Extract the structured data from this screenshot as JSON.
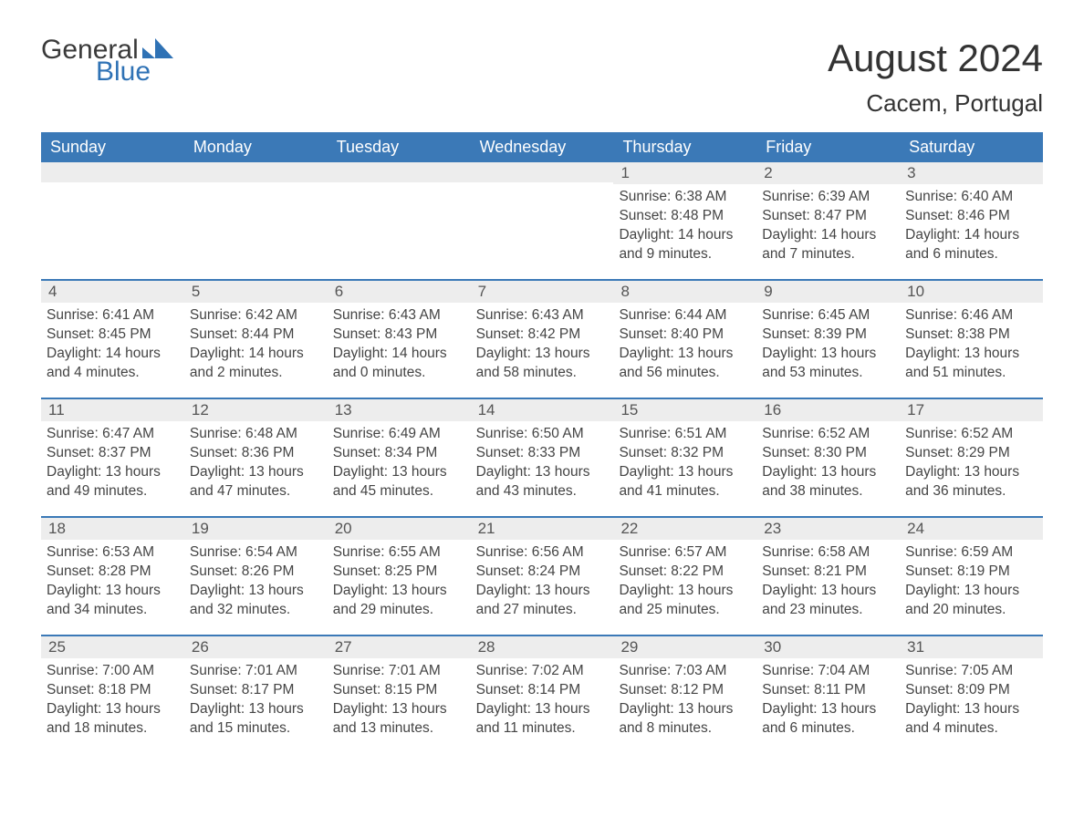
{
  "logo": {
    "text_general": "General",
    "text_blue": "Blue",
    "shape_color": "#2f72b5"
  },
  "header": {
    "month_title": "August 2024",
    "location": "Cacem, Portugal"
  },
  "weekdays": [
    "Sunday",
    "Monday",
    "Tuesday",
    "Wednesday",
    "Thursday",
    "Friday",
    "Saturday"
  ],
  "colors": {
    "header_bg": "#3b79b7",
    "header_text": "#ffffff",
    "row_border": "#3b79b7",
    "daynum_bg": "#ededed",
    "text": "#333333"
  },
  "weeks": [
    [
      {
        "day": "",
        "sunrise": "",
        "sunset": "",
        "daylight": ""
      },
      {
        "day": "",
        "sunrise": "",
        "sunset": "",
        "daylight": ""
      },
      {
        "day": "",
        "sunrise": "",
        "sunset": "",
        "daylight": ""
      },
      {
        "day": "",
        "sunrise": "",
        "sunset": "",
        "daylight": ""
      },
      {
        "day": "1",
        "sunrise": "Sunrise: 6:38 AM",
        "sunset": "Sunset: 8:48 PM",
        "daylight": "Daylight: 14 hours and 9 minutes."
      },
      {
        "day": "2",
        "sunrise": "Sunrise: 6:39 AM",
        "sunset": "Sunset: 8:47 PM",
        "daylight": "Daylight: 14 hours and 7 minutes."
      },
      {
        "day": "3",
        "sunrise": "Sunrise: 6:40 AM",
        "sunset": "Sunset: 8:46 PM",
        "daylight": "Daylight: 14 hours and 6 minutes."
      }
    ],
    [
      {
        "day": "4",
        "sunrise": "Sunrise: 6:41 AM",
        "sunset": "Sunset: 8:45 PM",
        "daylight": "Daylight: 14 hours and 4 minutes."
      },
      {
        "day": "5",
        "sunrise": "Sunrise: 6:42 AM",
        "sunset": "Sunset: 8:44 PM",
        "daylight": "Daylight: 14 hours and 2 minutes."
      },
      {
        "day": "6",
        "sunrise": "Sunrise: 6:43 AM",
        "sunset": "Sunset: 8:43 PM",
        "daylight": "Daylight: 14 hours and 0 minutes."
      },
      {
        "day": "7",
        "sunrise": "Sunrise: 6:43 AM",
        "sunset": "Sunset: 8:42 PM",
        "daylight": "Daylight: 13 hours and 58 minutes."
      },
      {
        "day": "8",
        "sunrise": "Sunrise: 6:44 AM",
        "sunset": "Sunset: 8:40 PM",
        "daylight": "Daylight: 13 hours and 56 minutes."
      },
      {
        "day": "9",
        "sunrise": "Sunrise: 6:45 AM",
        "sunset": "Sunset: 8:39 PM",
        "daylight": "Daylight: 13 hours and 53 minutes."
      },
      {
        "day": "10",
        "sunrise": "Sunrise: 6:46 AM",
        "sunset": "Sunset: 8:38 PM",
        "daylight": "Daylight: 13 hours and 51 minutes."
      }
    ],
    [
      {
        "day": "11",
        "sunrise": "Sunrise: 6:47 AM",
        "sunset": "Sunset: 8:37 PM",
        "daylight": "Daylight: 13 hours and 49 minutes."
      },
      {
        "day": "12",
        "sunrise": "Sunrise: 6:48 AM",
        "sunset": "Sunset: 8:36 PM",
        "daylight": "Daylight: 13 hours and 47 minutes."
      },
      {
        "day": "13",
        "sunrise": "Sunrise: 6:49 AM",
        "sunset": "Sunset: 8:34 PM",
        "daylight": "Daylight: 13 hours and 45 minutes."
      },
      {
        "day": "14",
        "sunrise": "Sunrise: 6:50 AM",
        "sunset": "Sunset: 8:33 PM",
        "daylight": "Daylight: 13 hours and 43 minutes."
      },
      {
        "day": "15",
        "sunrise": "Sunrise: 6:51 AM",
        "sunset": "Sunset: 8:32 PM",
        "daylight": "Daylight: 13 hours and 41 minutes."
      },
      {
        "day": "16",
        "sunrise": "Sunrise: 6:52 AM",
        "sunset": "Sunset: 8:30 PM",
        "daylight": "Daylight: 13 hours and 38 minutes."
      },
      {
        "day": "17",
        "sunrise": "Sunrise: 6:52 AM",
        "sunset": "Sunset: 8:29 PM",
        "daylight": "Daylight: 13 hours and 36 minutes."
      }
    ],
    [
      {
        "day": "18",
        "sunrise": "Sunrise: 6:53 AM",
        "sunset": "Sunset: 8:28 PM",
        "daylight": "Daylight: 13 hours and 34 minutes."
      },
      {
        "day": "19",
        "sunrise": "Sunrise: 6:54 AM",
        "sunset": "Sunset: 8:26 PM",
        "daylight": "Daylight: 13 hours and 32 minutes."
      },
      {
        "day": "20",
        "sunrise": "Sunrise: 6:55 AM",
        "sunset": "Sunset: 8:25 PM",
        "daylight": "Daylight: 13 hours and 29 minutes."
      },
      {
        "day": "21",
        "sunrise": "Sunrise: 6:56 AM",
        "sunset": "Sunset: 8:24 PM",
        "daylight": "Daylight: 13 hours and 27 minutes."
      },
      {
        "day": "22",
        "sunrise": "Sunrise: 6:57 AM",
        "sunset": "Sunset: 8:22 PM",
        "daylight": "Daylight: 13 hours and 25 minutes."
      },
      {
        "day": "23",
        "sunrise": "Sunrise: 6:58 AM",
        "sunset": "Sunset: 8:21 PM",
        "daylight": "Daylight: 13 hours and 23 minutes."
      },
      {
        "day": "24",
        "sunrise": "Sunrise: 6:59 AM",
        "sunset": "Sunset: 8:19 PM",
        "daylight": "Daylight: 13 hours and 20 minutes."
      }
    ],
    [
      {
        "day": "25",
        "sunrise": "Sunrise: 7:00 AM",
        "sunset": "Sunset: 8:18 PM",
        "daylight": "Daylight: 13 hours and 18 minutes."
      },
      {
        "day": "26",
        "sunrise": "Sunrise: 7:01 AM",
        "sunset": "Sunset: 8:17 PM",
        "daylight": "Daylight: 13 hours and 15 minutes."
      },
      {
        "day": "27",
        "sunrise": "Sunrise: 7:01 AM",
        "sunset": "Sunset: 8:15 PM",
        "daylight": "Daylight: 13 hours and 13 minutes."
      },
      {
        "day": "28",
        "sunrise": "Sunrise: 7:02 AM",
        "sunset": "Sunset: 8:14 PM",
        "daylight": "Daylight: 13 hours and 11 minutes."
      },
      {
        "day": "29",
        "sunrise": "Sunrise: 7:03 AM",
        "sunset": "Sunset: 8:12 PM",
        "daylight": "Daylight: 13 hours and 8 minutes."
      },
      {
        "day": "30",
        "sunrise": "Sunrise: 7:04 AM",
        "sunset": "Sunset: 8:11 PM",
        "daylight": "Daylight: 13 hours and 6 minutes."
      },
      {
        "day": "31",
        "sunrise": "Sunrise: 7:05 AM",
        "sunset": "Sunset: 8:09 PM",
        "daylight": "Daylight: 13 hours and 4 minutes."
      }
    ]
  ]
}
